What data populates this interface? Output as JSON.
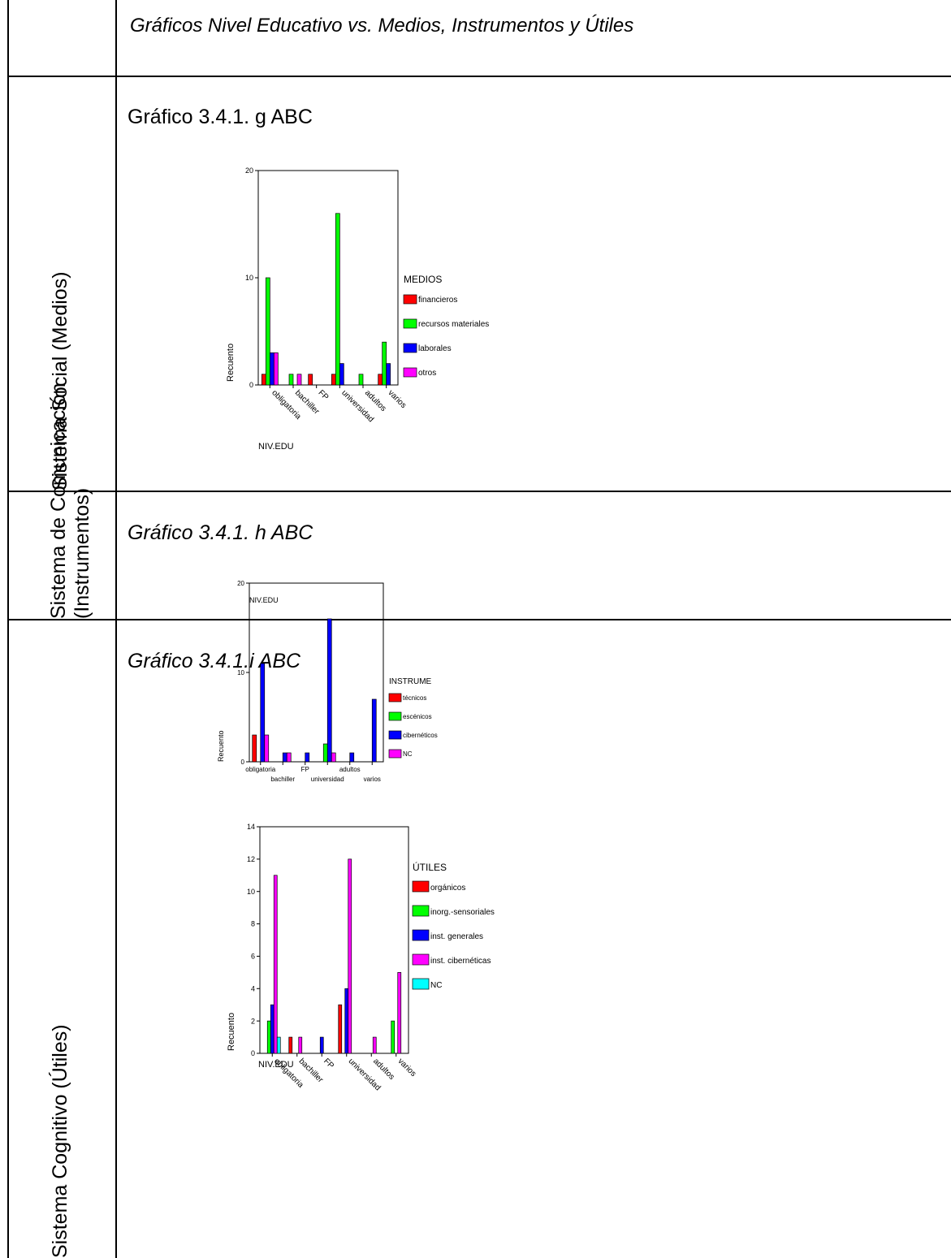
{
  "header": {
    "title": "Gráficos Nivel Educativo vs. Medios, Instrumentos y Útiles"
  },
  "rows": [
    {
      "label": "Sistema Social (Medios)",
      "figure_title": "Gráfico 3.4.1. g ABC"
    },
    {
      "label_line1": "Sistema de Comunicación",
      "label_line2": "(Instrumentos)",
      "figure_title": "Gráfico 3.4.1. h ABC"
    },
    {
      "label": "Sistema Cognitivo (Útiles)",
      "figure_title": "Gráfico 3.4.1.i ABC"
    }
  ],
  "chart_data": [
    {
      "type": "bar",
      "categories": [
        "obligatoria",
        "bachiller",
        "FP",
        "universidad",
        "adultos",
        "varios"
      ],
      "xlabel": "NIV.EDU",
      "ylabel": "Recuento",
      "ylim": [
        0,
        20
      ],
      "yticks": [
        0,
        10,
        20
      ],
      "legend_title": "MEDIOS",
      "series": [
        {
          "name": "financieros",
          "color": "#ff0000",
          "values": [
            1,
            0,
            1,
            1,
            0,
            1
          ]
        },
        {
          "name": "recursos materiales",
          "color": "#00ff00",
          "values": [
            10,
            1,
            0,
            16,
            1,
            4
          ]
        },
        {
          "name": "laborales",
          "color": "#0000ff",
          "values": [
            3,
            0,
            0,
            2,
            0,
            2
          ]
        },
        {
          "name": "otros",
          "color": "#ff00ff",
          "values": [
            3,
            1,
            0,
            0,
            0,
            0
          ]
        }
      ]
    },
    {
      "type": "bar",
      "categories": [
        "obligatoria",
        "bachiller",
        "FP",
        "universidad",
        "adultos",
        "varios"
      ],
      "xlabel": "NIV.EDU",
      "ylabel": "Recuento",
      "ylim": [
        0,
        20
      ],
      "yticks": [
        0,
        10,
        20
      ],
      "legend_title": "INSTRUME",
      "series": [
        {
          "name": "técnicos",
          "color": "#ff0000",
          "values": [
            3,
            0,
            0,
            0,
            0,
            0
          ]
        },
        {
          "name": "escénicos",
          "color": "#00ff00",
          "values": [
            0,
            0,
            0,
            2,
            0,
            0
          ]
        },
        {
          "name": "cibernéticos",
          "color": "#0000ff",
          "values": [
            11,
            1,
            1,
            16,
            1,
            7
          ]
        },
        {
          "name": "NC",
          "color": "#ff00ff",
          "values": [
            3,
            1,
            0,
            1,
            0,
            0
          ]
        }
      ]
    },
    {
      "type": "bar",
      "categories": [
        "obligatoria",
        "bachiller",
        "FP",
        "universidad",
        "adultos",
        "varios"
      ],
      "xlabel": "NIV.EDU",
      "ylabel": "Recuento",
      "ylim": [
        0,
        14
      ],
      "yticks": [
        0,
        2,
        4,
        6,
        8,
        10,
        12,
        14
      ],
      "legend_title": "ÚTILES",
      "series": [
        {
          "name": "orgánicos",
          "color": "#ff0000",
          "values": [
            0,
            1,
            0,
            3,
            0,
            0
          ]
        },
        {
          "name": "inorg.-sensoriales",
          "color": "#00ff00",
          "values": [
            2,
            0,
            0,
            0,
            0,
            2
          ]
        },
        {
          "name": "inst. generales",
          "color": "#0000ff",
          "values": [
            3,
            0,
            1,
            4,
            0,
            0
          ]
        },
        {
          "name": "inst. cibernéticas",
          "color": "#ff00ff",
          "values": [
            11,
            1,
            0,
            12,
            1,
            5
          ]
        },
        {
          "name": "NC",
          "color": "#00ffff",
          "values": [
            1,
            0,
            0,
            0,
            0,
            0
          ]
        }
      ]
    }
  ]
}
